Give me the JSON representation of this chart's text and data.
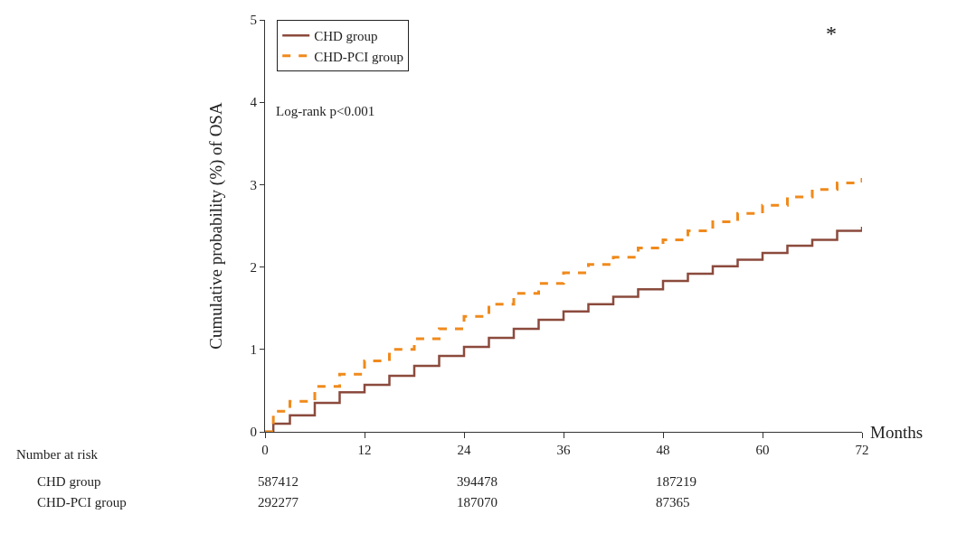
{
  "chart_data": {
    "type": "step",
    "xlabel": "Months",
    "ylabel": "Cumulative probability (%) of OSA",
    "x": [
      0,
      1,
      3,
      6,
      9,
      12,
      15,
      18,
      21,
      24,
      27,
      30,
      33,
      36,
      39,
      42,
      45,
      48,
      51,
      54,
      57,
      60,
      63,
      66,
      69,
      72
    ],
    "series": [
      {
        "name": "CHD group",
        "color": "#8b4a3c",
        "line_style": "solid",
        "values": [
          0,
          0.1,
          0.2,
          0.35,
          0.48,
          0.57,
          0.68,
          0.8,
          0.92,
          1.03,
          1.14,
          1.25,
          1.36,
          1.46,
          1.55,
          1.64,
          1.73,
          1.83,
          1.92,
          2.01,
          2.09,
          2.17,
          2.26,
          2.33,
          2.44,
          2.49
        ]
      },
      {
        "name": "CHD-PCI group",
        "color": "#f08a1c",
        "line_style": "dashed",
        "values": [
          0,
          0.25,
          0.37,
          0.55,
          0.7,
          0.86,
          1.0,
          1.13,
          1.25,
          1.4,
          1.55,
          1.68,
          1.8,
          1.93,
          2.03,
          2.12,
          2.23,
          2.33,
          2.44,
          2.55,
          2.65,
          2.75,
          2.85,
          2.94,
          3.02,
          3.08
        ]
      }
    ],
    "xlim": [
      0,
      72
    ],
    "xticks": [
      0,
      12,
      24,
      36,
      48,
      60,
      72
    ],
    "ylim": [
      0,
      5
    ],
    "yticks": [
      0,
      1,
      2,
      3,
      4,
      5
    ],
    "grid": false,
    "legend": "top left",
    "marker": "none",
    "annotations": [
      "Log-rank p<0.001",
      "*",
      "Number at risk",
      "587412",
      "394478",
      "187219",
      "292277",
      "187070",
      "87365"
    ]
  }
}
